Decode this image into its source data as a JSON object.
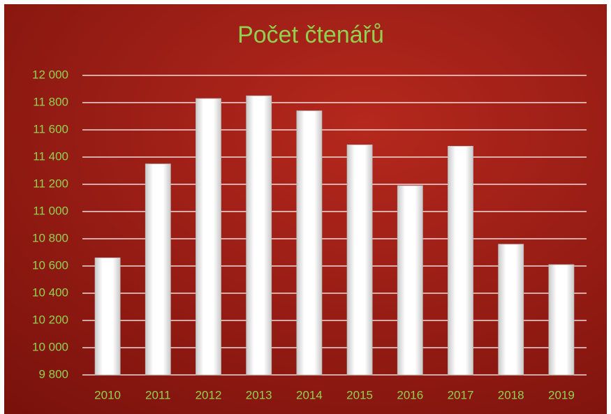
{
  "chart_data": {
    "type": "bar",
    "title": "Počet čtenářů",
    "categories": [
      "2010",
      "2011",
      "2012",
      "2013",
      "2014",
      "2015",
      "2016",
      "2017",
      "2018",
      "2019"
    ],
    "values": [
      10660,
      11350,
      11830,
      11850,
      11740,
      11490,
      11190,
      11480,
      10760,
      10610
    ],
    "color": "#ffffff",
    "ylim": [
      9800,
      12000
    ],
    "yticks": [
      {
        "value": 9800,
        "label": "9 800"
      },
      {
        "value": 10000,
        "label": "10 000"
      },
      {
        "value": 10200,
        "label": "10 200"
      },
      {
        "value": 10400,
        "label": "10 400"
      },
      {
        "value": 10600,
        "label": "10 600"
      },
      {
        "value": 10800,
        "label": "10 800"
      },
      {
        "value": 11000,
        "label": "11 000"
      },
      {
        "value": 11200,
        "label": "11 200"
      },
      {
        "value": 11400,
        "label": "11 400"
      },
      {
        "value": 11600,
        "label": "11 600"
      },
      {
        "value": 11800,
        "label": "11 800"
      },
      {
        "value": 12000,
        "label": "12 000"
      }
    ],
    "grid": true
  }
}
